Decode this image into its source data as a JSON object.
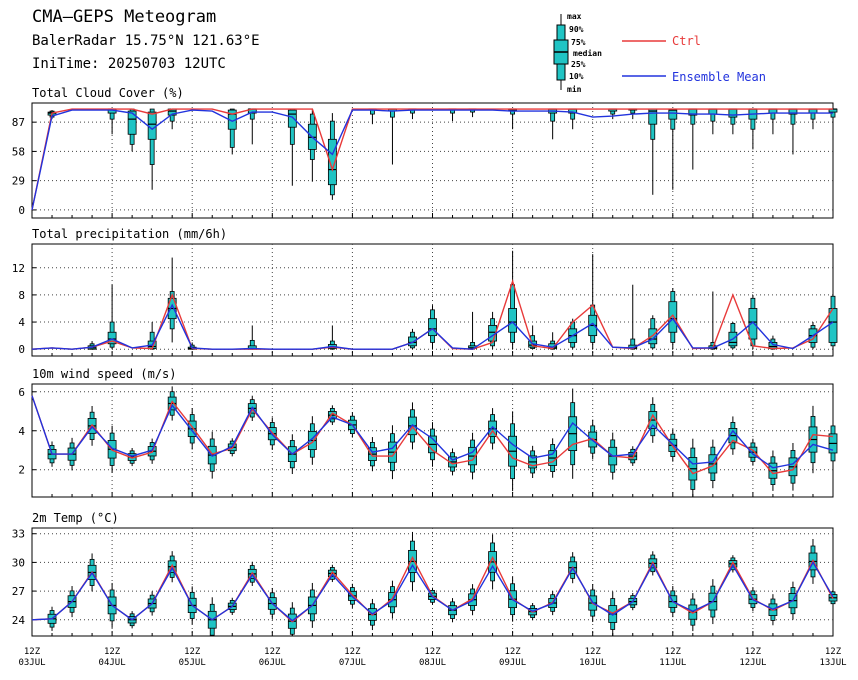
{
  "header": {
    "title": "CMA—GEPS Meteogram",
    "station": "BalerRadar 15.75°N 121.63°E",
    "init": "IniTime: 20250703 12UTC"
  },
  "legend": {
    "box_labels": [
      "max",
      "90%",
      "75%",
      "median",
      "25%",
      "10%",
      "min"
    ],
    "ctrl": "Ctrl",
    "mean": "Ensemble Mean",
    "ctrl_color": "#e83a3a",
    "mean_color": "#2233dd",
    "box_color": "#20c4c4"
  },
  "x_axis": {
    "ticks": [
      {
        "top": "12Z",
        "bottom": "03JUL"
      },
      {
        "top": "12Z",
        "bottom": "04JUL"
      },
      {
        "top": "12Z",
        "bottom": "05JUL"
      },
      {
        "top": "12Z",
        "bottom": "06JUL"
      },
      {
        "top": "12Z",
        "bottom": "07JUL"
      },
      {
        "top": "12Z",
        "bottom": "08JUL"
      },
      {
        "top": "12Z",
        "bottom": "09JUL"
      },
      {
        "top": "12Z",
        "bottom": "10JUL"
      },
      {
        "top": "12Z",
        "bottom": "11JUL"
      },
      {
        "top": "12Z",
        "bottom": "12JUL"
      },
      {
        "top": "12Z",
        "bottom": "13JUL"
      }
    ]
  },
  "chart_data": [
    {
      "type": "box",
      "title": "Total Cloud Cover (%)",
      "ylim": [
        -8,
        106
      ],
      "yticks": [
        0,
        29,
        58,
        87
      ],
      "grid": true,
      "x_hours": [
        0,
        6,
        12,
        18,
        24,
        30,
        36,
        42,
        48,
        54,
        60,
        66,
        72,
        78,
        84,
        90,
        96,
        102,
        108,
        114,
        120,
        126,
        132,
        138,
        144,
        150,
        156,
        162,
        168,
        174,
        180,
        186,
        192,
        198,
        204,
        210,
        216,
        222,
        228,
        234,
        240
      ],
      "ctrl": [
        0,
        96,
        100,
        100,
        100,
        100,
        95,
        100,
        100,
        100,
        95,
        100,
        100,
        100,
        100,
        40,
        100,
        100,
        100,
        100,
        100,
        100,
        100,
        100,
        100,
        100,
        100,
        100,
        100,
        100,
        100,
        100,
        100,
        100,
        100,
        100,
        100,
        100,
        100,
        100,
        100
      ],
      "mean": [
        0,
        93,
        99,
        99,
        99,
        96,
        80,
        95,
        99,
        98,
        88,
        97,
        97,
        92,
        72,
        55,
        99,
        99,
        98,
        99,
        99,
        99,
        99,
        99,
        98,
        98,
        98,
        97,
        92,
        93,
        95,
        96,
        96,
        95,
        95,
        94,
        95,
        96,
        96,
        96,
        96
      ],
      "boxes": [
        {
          "i": 1,
          "min": 90,
          "p10": 92,
          "p25": 94,
          "med": 96,
          "p75": 97,
          "p90": 98,
          "max": 99
        },
        {
          "i": 4,
          "min": 75,
          "p10": 90,
          "p25": 96,
          "med": 100,
          "p75": 100,
          "p90": 100,
          "max": 100
        },
        {
          "i": 5,
          "min": 58,
          "p10": 65,
          "p25": 75,
          "med": 90,
          "p75": 98,
          "p90": 100,
          "max": 100
        },
        {
          "i": 6,
          "min": 20,
          "p10": 45,
          "p25": 70,
          "med": 85,
          "p75": 97,
          "p90": 100,
          "max": 100
        },
        {
          "i": 7,
          "min": 80,
          "p10": 88,
          "p25": 94,
          "med": 98,
          "p75": 100,
          "p90": 100,
          "max": 100
        },
        {
          "i": 10,
          "min": 55,
          "p10": 62,
          "p25": 80,
          "med": 95,
          "p75": 99,
          "p90": 100,
          "max": 100
        },
        {
          "i": 11,
          "min": 65,
          "p10": 90,
          "p25": 96,
          "med": 100,
          "p75": 100,
          "p90": 100,
          "max": 100
        },
        {
          "i": 13,
          "min": 24,
          "p10": 65,
          "p25": 82,
          "med": 95,
          "p75": 99,
          "p90": 100,
          "max": 100
        },
        {
          "i": 14,
          "min": 28,
          "p10": 50,
          "p25": 60,
          "med": 72,
          "p75": 85,
          "p90": 95,
          "max": 100
        },
        {
          "i": 15,
          "min": 10,
          "p10": 15,
          "p25": 25,
          "med": 40,
          "p75": 70,
          "p90": 88,
          "max": 96
        },
        {
          "i": 17,
          "min": 85,
          "p10": 95,
          "p25": 99,
          "med": 100,
          "p75": 100,
          "p90": 100,
          "max": 100
        },
        {
          "i": 18,
          "min": 45,
          "p10": 92,
          "p25": 98,
          "med": 100,
          "p75": 100,
          "p90": 100,
          "max": 100
        },
        {
          "i": 19,
          "min": 90,
          "p10": 96,
          "p25": 99,
          "med": 100,
          "p75": 100,
          "p90": 100,
          "max": 100
        },
        {
          "i": 21,
          "min": 88,
          "p10": 96,
          "p25": 99,
          "med": 100,
          "p75": 100,
          "p90": 100,
          "max": 100
        },
        {
          "i": 22,
          "min": 92,
          "p10": 97,
          "p25": 99,
          "med": 100,
          "p75": 100,
          "p90": 100,
          "max": 100
        },
        {
          "i": 24,
          "min": 80,
          "p10": 95,
          "p25": 99,
          "med": 100,
          "p75": 100,
          "p90": 100,
          "max": 100
        },
        {
          "i": 26,
          "min": 70,
          "p10": 88,
          "p25": 96,
          "med": 100,
          "p75": 100,
          "p90": 100,
          "max": 100
        },
        {
          "i": 27,
          "min": 80,
          "p10": 90,
          "p25": 96,
          "med": 100,
          "p75": 100,
          "p90": 100,
          "max": 100
        },
        {
          "i": 29,
          "min": 90,
          "p10": 95,
          "p25": 98,
          "med": 100,
          "p75": 100,
          "p90": 100,
          "max": 100
        },
        {
          "i": 30,
          "min": 90,
          "p10": 96,
          "p25": 99,
          "med": 100,
          "p75": 100,
          "p90": 100,
          "max": 100
        },
        {
          "i": 31,
          "min": 15,
          "p10": 70,
          "p25": 85,
          "med": 98,
          "p75": 100,
          "p90": 100,
          "max": 100
        },
        {
          "i": 32,
          "min": 20,
          "p10": 80,
          "p25": 90,
          "med": 99,
          "p75": 100,
          "p90": 100,
          "max": 100
        },
        {
          "i": 33,
          "min": 40,
          "p10": 85,
          "p25": 94,
          "med": 100,
          "p75": 100,
          "p90": 100,
          "max": 100
        },
        {
          "i": 34,
          "min": 75,
          "p10": 88,
          "p25": 95,
          "med": 100,
          "p75": 100,
          "p90": 100,
          "max": 100
        },
        {
          "i": 35,
          "min": 75,
          "p10": 85,
          "p25": 92,
          "med": 100,
          "p75": 100,
          "p90": 100,
          "max": 100
        },
        {
          "i": 36,
          "min": 60,
          "p10": 80,
          "p25": 90,
          "med": 100,
          "p75": 100,
          "p90": 100,
          "max": 100
        },
        {
          "i": 37,
          "min": 75,
          "p10": 90,
          "p25": 96,
          "med": 100,
          "p75": 100,
          "p90": 100,
          "max": 100
        },
        {
          "i": 38,
          "min": 55,
          "p10": 85,
          "p25": 95,
          "med": 100,
          "p75": 100,
          "p90": 100,
          "max": 100
        },
        {
          "i": 39,
          "min": 80,
          "p10": 90,
          "p25": 96,
          "med": 100,
          "p75": 100,
          "p90": 100,
          "max": 100
        },
        {
          "i": 40,
          "min": 85,
          "p10": 92,
          "p25": 97,
          "med": 100,
          "p75": 100,
          "p90": 100,
          "max": 100
        }
      ]
    },
    {
      "type": "box",
      "title": "Total precipitation (mm/6h)",
      "ylim": [
        -1,
        15.5
      ],
      "yticks": [
        0,
        4,
        8,
        12
      ],
      "grid": true,
      "x_hours": [
        0,
        6,
        12,
        18,
        24,
        30,
        36,
        42,
        48,
        54,
        60,
        66,
        72,
        78,
        84,
        90,
        96,
        102,
        108,
        114,
        120,
        126,
        132,
        138,
        144,
        150,
        156,
        162,
        168,
        174,
        180,
        186,
        192,
        198,
        204,
        210,
        216,
        222,
        228,
        234,
        240
      ],
      "ctrl": [
        0,
        0.2,
        0,
        0.3,
        1.2,
        0.2,
        0.1,
        8.0,
        0.1,
        0,
        0,
        0,
        0,
        0,
        0,
        0.3,
        0,
        0,
        0,
        1.0,
        3.0,
        0.1,
        0,
        1.0,
        10.0,
        0.5,
        0.1,
        4.0,
        6.5,
        0.3,
        0.1,
        2.0,
        5.0,
        0.1,
        0.2,
        8.0,
        0.5,
        0.1,
        0.2,
        1.5,
        6.0
      ],
      "mean": [
        0,
        0.2,
        0,
        0.3,
        1.5,
        0.2,
        0.6,
        6.5,
        0.2,
        0,
        0,
        0.1,
        0,
        0,
        0,
        0.4,
        0,
        0,
        0,
        1.0,
        3.0,
        0.2,
        0,
        2.0,
        4.0,
        0.8,
        0.3,
        2.0,
        3.8,
        0.3,
        0.2,
        1.5,
        4.5,
        0.2,
        0.2,
        1.5,
        4.0,
        0.7,
        0.1,
        2.0,
        4.0
      ],
      "boxes": [
        {
          "i": 3,
          "min": 0,
          "p10": 0,
          "p25": 0,
          "med": 0.2,
          "p75": 0.5,
          "p90": 0.8,
          "max": 1.2
        },
        {
          "i": 4,
          "min": 0,
          "p10": 0.3,
          "p25": 0.8,
          "med": 1.5,
          "p75": 2.5,
          "p90": 4.0,
          "max": 9.5
        },
        {
          "i": 6,
          "min": 0,
          "p10": 0,
          "p25": 0.1,
          "med": 0.4,
          "p75": 1.2,
          "p90": 2.5,
          "max": 4.0
        },
        {
          "i": 7,
          "min": 1.0,
          "p10": 3.0,
          "p25": 4.5,
          "med": 6.0,
          "p75": 7.5,
          "p90": 8.5,
          "max": 13.5
        },
        {
          "i": 8,
          "min": 0,
          "p10": 0,
          "p25": 0,
          "med": 0.1,
          "p75": 0.3,
          "p90": 0.6,
          "max": 1.0
        },
        {
          "i": 11,
          "min": 0,
          "p10": 0,
          "p25": 0,
          "med": 0.1,
          "p75": 0.5,
          "p90": 1.3,
          "max": 3.5
        },
        {
          "i": 15,
          "min": 0,
          "p10": 0,
          "p25": 0.1,
          "med": 0.3,
          "p75": 0.7,
          "p90": 1.2,
          "max": 3.5
        },
        {
          "i": 19,
          "min": 0,
          "p10": 0.2,
          "p25": 0.5,
          "med": 1.0,
          "p75": 1.8,
          "p90": 2.5,
          "max": 3.0
        },
        {
          "i": 20,
          "min": 0,
          "p10": 1.0,
          "p25": 2.0,
          "med": 3.0,
          "p75": 4.5,
          "p90": 5.8,
          "max": 6.5
        },
        {
          "i": 22,
          "min": 0,
          "p10": 0,
          "p25": 0.1,
          "med": 0.2,
          "p75": 0.5,
          "p90": 1.0,
          "max": 5.5
        },
        {
          "i": 23,
          "min": 0,
          "p10": 0.5,
          "p25": 1.2,
          "med": 2.5,
          "p75": 3.5,
          "p90": 4.5,
          "max": 5.5
        },
        {
          "i": 24,
          "min": 0,
          "p10": 1.0,
          "p25": 2.5,
          "med": 4.0,
          "p75": 6.0,
          "p90": 9.5,
          "max": 14.5
        },
        {
          "i": 25,
          "min": 0,
          "p10": 0.1,
          "p25": 0.3,
          "med": 0.6,
          "p75": 1.2,
          "p90": 2.0,
          "max": 3.5
        },
        {
          "i": 26,
          "min": 0,
          "p10": 0,
          "p25": 0.1,
          "med": 0.3,
          "p75": 0.8,
          "p90": 1.2,
          "max": 2.5
        },
        {
          "i": 27,
          "min": 0,
          "p10": 0.3,
          "p25": 1.0,
          "med": 2.0,
          "p75": 3.0,
          "p90": 4.0,
          "max": 4.5
        },
        {
          "i": 28,
          "min": 0,
          "p10": 1.0,
          "p25": 2.0,
          "med": 3.5,
          "p75": 5.0,
          "p90": 6.5,
          "max": 14.0
        },
        {
          "i": 30,
          "min": 0,
          "p10": 0,
          "p25": 0.1,
          "med": 0.2,
          "p75": 0.6,
          "p90": 1.5,
          "max": 9.5
        },
        {
          "i": 31,
          "min": 0,
          "p10": 0.2,
          "p25": 0.8,
          "med": 1.5,
          "p75": 3.0,
          "p90": 4.5,
          "max": 5.0
        },
        {
          "i": 32,
          "min": 0,
          "p10": 1.0,
          "p25": 2.5,
          "med": 4.5,
          "p75": 7.0,
          "p90": 8.5,
          "max": 9.0
        },
        {
          "i": 34,
          "min": 0,
          "p10": 0,
          "p25": 0.1,
          "med": 0.2,
          "p75": 0.5,
          "p90": 1.0,
          "max": 8.5
        },
        {
          "i": 35,
          "min": 0,
          "p10": 0.2,
          "p25": 0.5,
          "med": 1.0,
          "p75": 2.5,
          "p90": 3.8,
          "max": 4.0
        },
        {
          "i": 36,
          "min": 0,
          "p10": 0.5,
          "p25": 1.5,
          "med": 4.0,
          "p75": 6.0,
          "p90": 7.5,
          "max": 8.0
        },
        {
          "i": 37,
          "min": 0,
          "p10": 0,
          "p25": 0.1,
          "med": 0.4,
          "p75": 1.0,
          "p90": 1.5,
          "max": 2.0
        },
        {
          "i": 39,
          "min": 0,
          "p10": 0.3,
          "p25": 1.0,
          "med": 2.0,
          "p75": 3.0,
          "p90": 3.5,
          "max": 4.0
        },
        {
          "i": 40,
          "min": 0,
          "p10": 0.5,
          "p25": 1.0,
          "med": 4.0,
          "p75": 6.0,
          "p90": 7.8,
          "max": 8.0
        }
      ]
    },
    {
      "type": "box",
      "title": "10m wind speed (m/s)",
      "ylim": [
        0.6,
        6.4
      ],
      "yticks": [
        2,
        4,
        6
      ],
      "grid": true,
      "x_hours": [
        0,
        6,
        12,
        18,
        24,
        30,
        36,
        42,
        48,
        54,
        60,
        66,
        72,
        78,
        84,
        90,
        96,
        102,
        108,
        114,
        120,
        126,
        132,
        138,
        144,
        150,
        156,
        162,
        168,
        174,
        180,
        186,
        192,
        198,
        204,
        210,
        216,
        222,
        228,
        234,
        240
      ],
      "ctrl": [
        5.8,
        2.8,
        2.8,
        4.3,
        3.0,
        2.6,
        2.9,
        5.5,
        4.2,
        2.8,
        3.1,
        5.1,
        3.9,
        2.8,
        3.4,
        4.9,
        4.3,
        2.7,
        2.7,
        4.2,
        3.0,
        2.3,
        2.5,
        4.0,
        2.6,
        2.2,
        2.4,
        3.3,
        3.6,
        2.7,
        2.6,
        4.8,
        3.2,
        1.8,
        2.2,
        3.5,
        3.0,
        1.8,
        2.0,
        3.8,
        3.7
      ],
      "mean": [
        5.8,
        2.8,
        2.8,
        4.2,
        3.1,
        2.7,
        3.0,
        5.3,
        4.0,
        2.7,
        3.2,
        5.2,
        3.8,
        2.8,
        3.6,
        4.7,
        4.3,
        2.9,
        3.1,
        4.3,
        3.6,
        2.5,
        2.9,
        4.2,
        3.3,
        2.6,
        2.8,
        4.4,
        3.5,
        2.7,
        2.8,
        4.3,
        3.3,
        2.3,
        2.4,
        4.0,
        2.8,
        2.1,
        2.3,
        3.3,
        3.0
      ]
    },
    {
      "type": "box",
      "title": "2m Temp (°C)",
      "ylim": [
        22.3,
        33.6
      ],
      "yticks": [
        24,
        27,
        30,
        33
      ],
      "grid": true,
      "x_hours": [
        0,
        6,
        12,
        18,
        24,
        30,
        36,
        42,
        48,
        54,
        60,
        66,
        72,
        78,
        84,
        90,
        96,
        102,
        108,
        114,
        120,
        126,
        132,
        138,
        144,
        150,
        156,
        162,
        168,
        174,
        180,
        186,
        192,
        198,
        204,
        210,
        216,
        222,
        228,
        234,
        240
      ],
      "ctrl": [
        24.0,
        24.1,
        25.9,
        29.0,
        25.5,
        24.0,
        25.7,
        29.7,
        25.5,
        24.0,
        25.4,
        28.9,
        25.7,
        23.8,
        25.5,
        29.0,
        26.6,
        24.5,
        26.2,
        30.5,
        26.5,
        25.0,
        26.2,
        30.5,
        26.2,
        24.8,
        25.8,
        29.5,
        25.7,
        24.7,
        25.9,
        30.0,
        25.9,
        24.7,
        25.9,
        30.0,
        26.2,
        25.0,
        26.0,
        30.2,
        26.2
      ],
      "mean": [
        24.0,
        24.1,
        25.9,
        28.9,
        25.5,
        24.0,
        25.7,
        29.4,
        25.5,
        24.0,
        25.4,
        28.7,
        25.7,
        23.9,
        25.5,
        28.7,
        26.4,
        24.6,
        26.0,
        29.7,
        26.4,
        25.0,
        26.0,
        29.6,
        26.1,
        24.9,
        25.7,
        29.4,
        25.8,
        24.5,
        25.9,
        29.8,
        25.9,
        24.9,
        25.9,
        29.7,
        26.1,
        25.1,
        26.0,
        30.0,
        26.4
      ]
    }
  ]
}
